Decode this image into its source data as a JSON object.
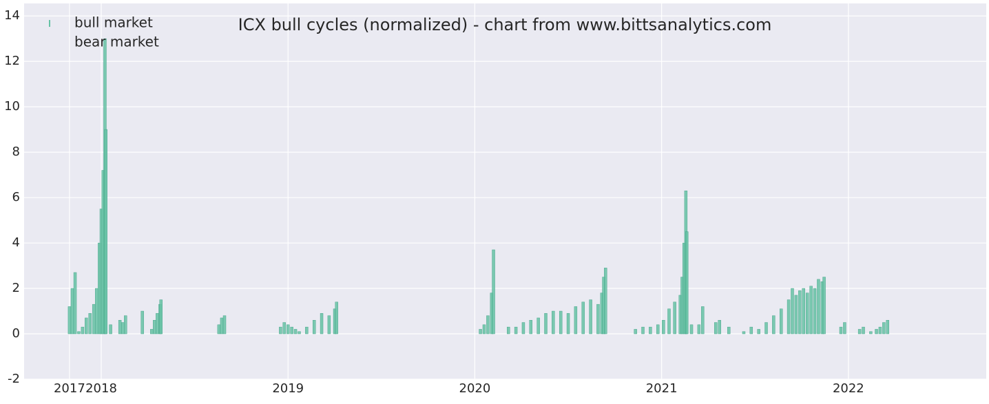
{
  "chart_data": {
    "type": "bar",
    "title": "ICX bull cycles (normalized)  - chart from www.bittsanalytics.com",
    "legend": "upper left",
    "grid": true,
    "xlim": [
      2017.587,
      2022.738
    ],
    "ylim": [
      -2,
      14.55
    ],
    "xticks": [
      {
        "value": 2017.83,
        "label": "2017"
      },
      2018,
      2019,
      2020,
      2021,
      2022
    ],
    "yticks": [
      -2,
      0,
      2,
      4,
      6,
      8,
      10,
      12,
      14
    ],
    "series": [
      {
        "name": "bull market",
        "color": "#66c2a5",
        "x": [
          2017.83,
          2017.845,
          2017.86,
          2017.88,
          2017.9,
          2017.92,
          2017.94,
          2017.96,
          2017.975,
          2017.99,
          2018.0,
          2018.01,
          2018.02,
          2018.025,
          2018.05,
          2018.1,
          2018.115,
          2018.13,
          2018.22,
          2018.27,
          2018.285,
          2018.3,
          2018.315,
          2018.32,
          2018.63,
          2018.645,
          2018.66,
          2018.96,
          2018.98,
          2019.0,
          2019.02,
          2019.04,
          2019.06,
          2019.1,
          2019.14,
          2019.18,
          2019.22,
          2019.25,
          2019.26,
          2020.03,
          2020.05,
          2020.07,
          2020.09,
          2020.1,
          2020.18,
          2020.22,
          2020.26,
          2020.3,
          2020.34,
          2020.38,
          2020.42,
          2020.46,
          2020.5,
          2020.54,
          2020.58,
          2020.62,
          2020.66,
          2020.68,
          2020.69,
          2020.7,
          2020.86,
          2020.9,
          2020.94,
          2020.98,
          2021.01,
          2021.04,
          2021.07,
          2021.1,
          2021.11,
          2021.12,
          2021.13,
          2021.135,
          2021.16,
          2021.2,
          2021.22,
          2021.29,
          2021.31,
          2021.36,
          2021.44,
          2021.48,
          2021.52,
          2021.56,
          2021.6,
          2021.64,
          2021.68,
          2021.7,
          2021.72,
          2021.74,
          2021.76,
          2021.78,
          2021.8,
          2021.82,
          2021.84,
          2021.86,
          2021.87,
          2021.96,
          2021.98,
          2022.06,
          2022.08,
          2022.12,
          2022.15,
          2022.17,
          2022.19,
          2022.21
        ],
        "values": [
          1.2,
          2.0,
          2.7,
          0.1,
          0.3,
          0.7,
          0.9,
          1.3,
          2.0,
          4.0,
          5.5,
          7.2,
          13.0,
          9.0,
          0.4,
          0.6,
          0.5,
          0.8,
          1.0,
          0.2,
          0.6,
          0.9,
          1.3,
          1.5,
          0.4,
          0.7,
          0.8,
          0.3,
          0.5,
          0.4,
          0.3,
          0.2,
          0.1,
          0.3,
          0.6,
          0.9,
          0.8,
          1.1,
          1.4,
          0.2,
          0.4,
          0.8,
          1.8,
          3.7,
          0.3,
          0.3,
          0.5,
          0.6,
          0.7,
          0.9,
          1.0,
          1.0,
          0.9,
          1.2,
          1.4,
          1.5,
          1.3,
          1.8,
          2.5,
          2.9,
          0.2,
          0.3,
          0.3,
          0.4,
          0.6,
          1.1,
          1.4,
          1.7,
          2.5,
          4.0,
          6.3,
          4.5,
          0.4,
          0.4,
          1.2,
          0.5,
          0.6,
          0.3,
          0.1,
          0.3,
          0.2,
          0.5,
          0.8,
          1.1,
          1.5,
          2.0,
          1.7,
          1.9,
          2.0,
          1.8,
          2.1,
          2.0,
          2.4,
          2.3,
          2.5,
          0.3,
          0.5,
          0.2,
          0.3,
          0.1,
          0.2,
          0.3,
          0.5,
          0.6
        ]
      },
      {
        "name": "bear market",
        "color": "#eaeaf2",
        "x": [],
        "values": []
      }
    ]
  }
}
